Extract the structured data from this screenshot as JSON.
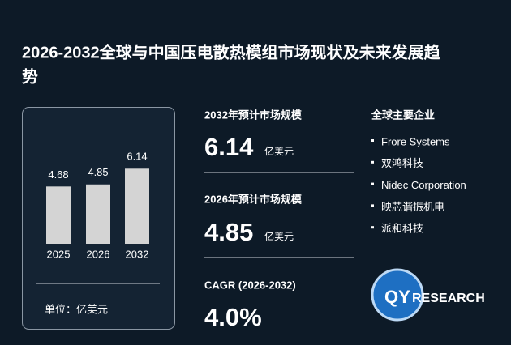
{
  "title": "2026-2032全球与中国压电散热模组市场现状及未来发展趋势",
  "chart_data": {
    "type": "bar",
    "categories": [
      "2025",
      "2026",
      "2032"
    ],
    "values": [
      4.68,
      4.85,
      6.14
    ],
    "color": "#d4d4d4",
    "unit_label": "单位：亿美元"
  },
  "stats": [
    {
      "label": "2032年预计市场规模",
      "value": "6.14",
      "unit": "亿美元"
    },
    {
      "label": "2026年预计市场规模",
      "value": "4.85",
      "unit": "亿美元"
    }
  ],
  "cagr": {
    "label": "CAGR (2026-2032)",
    "value": "4.0%"
  },
  "companies": {
    "title": "全球主要企业",
    "items": [
      "Frore Systems",
      "双鸿科技",
      "Nidec Corporation",
      "映芯谐振机电",
      "派和科技"
    ]
  },
  "logo": {
    "part1": "QY",
    "part2": "RESEARCH"
  }
}
